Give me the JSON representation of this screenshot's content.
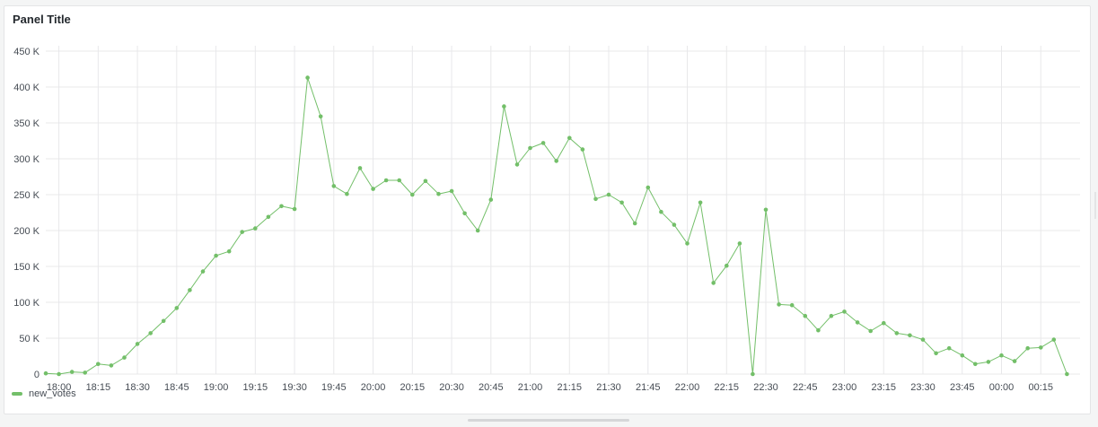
{
  "panel": {
    "title": "Panel Title"
  },
  "colors": {
    "series": "#73bf69",
    "grid": "#e8e8ea",
    "tick_text": "#464c54"
  },
  "chart_data": {
    "type": "line",
    "title": "Panel Title",
    "xlabel": "",
    "ylabel": "",
    "grid": true,
    "legend": "bottom-left",
    "x_start": "17:55",
    "x_step_minutes": 5,
    "xlim": [
      "17:55",
      "00:30"
    ],
    "ylim": [
      0,
      450000
    ],
    "x_ticks": [
      "18:00",
      "18:15",
      "18:30",
      "18:45",
      "19:00",
      "19:15",
      "19:30",
      "19:45",
      "20:00",
      "20:15",
      "20:30",
      "20:45",
      "21:00",
      "21:15",
      "21:30",
      "21:45",
      "22:00",
      "22:15",
      "22:30",
      "22:45",
      "23:00",
      "23:15",
      "23:30",
      "23:45",
      "00:00",
      "00:15"
    ],
    "y_ticks": [
      0,
      50000,
      100000,
      150000,
      200000,
      250000,
      300000,
      350000,
      400000,
      450000
    ],
    "y_tick_labels": [
      "0",
      "50 K",
      "100 K",
      "150 K",
      "200 K",
      "250 K",
      "300 K",
      "350 K",
      "400 K",
      "450 K"
    ],
    "series": [
      {
        "name": "new_votes",
        "values": [
          1000,
          0,
          3000,
          2000,
          14000,
          12000,
          23000,
          42000,
          57000,
          74000,
          92000,
          117000,
          143000,
          165000,
          171000,
          198000,
          203000,
          219000,
          234000,
          230000,
          413000,
          359000,
          262000,
          251000,
          287000,
          258000,
          270000,
          270000,
          250000,
          269000,
          251000,
          255000,
          224000,
          200000,
          243000,
          373000,
          292000,
          315000,
          322000,
          297000,
          329000,
          313000,
          244000,
          250000,
          239000,
          210000,
          260000,
          226000,
          208000,
          182000,
          239000,
          127000,
          151000,
          182000,
          0,
          229000,
          97000,
          96000,
          81000,
          61000,
          81000,
          87000,
          72000,
          60000,
          71000,
          57000,
          54000,
          48000,
          29000,
          36000,
          26000,
          14000,
          17000,
          26000,
          18000,
          36000,
          37000,
          48000,
          0
        ]
      }
    ]
  }
}
